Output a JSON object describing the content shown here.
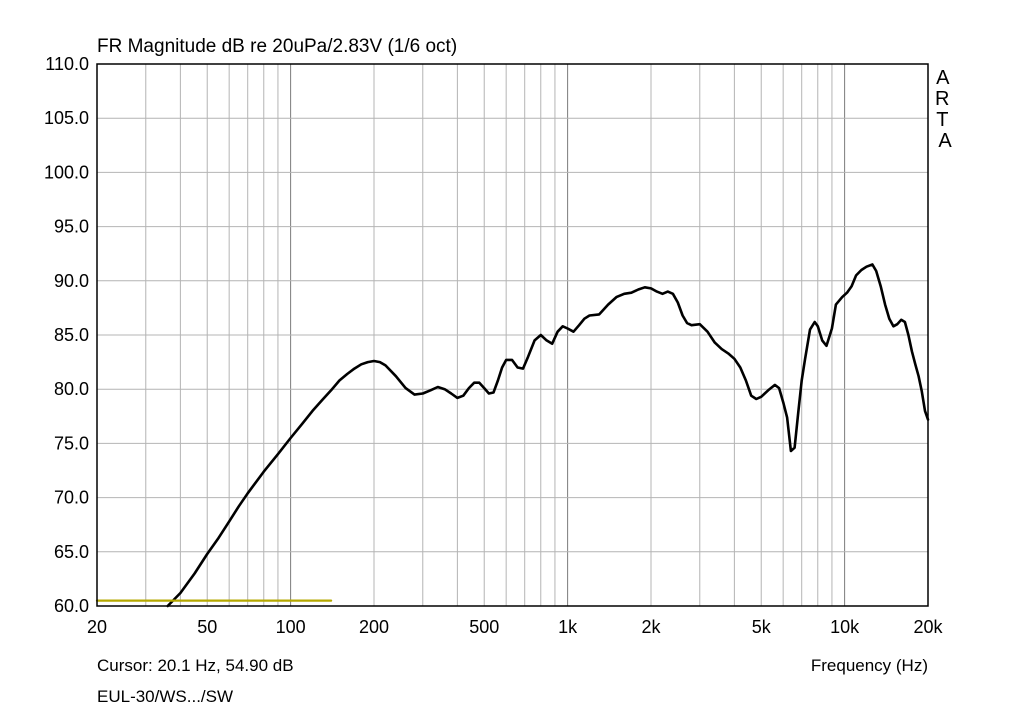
{
  "chart_data": {
    "type": "line",
    "title": "FR Magnitude dB re 20uPa/2.83V (1/6 oct)",
    "xlabel": "Frequency (Hz)",
    "ylabel": "",
    "x_scale": "log",
    "xlim": [
      20,
      20000
    ],
    "ylim": [
      60,
      110
    ],
    "grid": true,
    "y_ticks": [
      "110.0",
      "105.0",
      "100.0",
      "95.0",
      "90.0",
      "85.0",
      "80.0",
      "75.0",
      "70.0",
      "65.0",
      "60.0"
    ],
    "x_ticks": [
      {
        "value": 20,
        "label": "20"
      },
      {
        "value": 50,
        "label": "50"
      },
      {
        "value": 100,
        "label": "100"
      },
      {
        "value": 200,
        "label": "200"
      },
      {
        "value": 500,
        "label": "500"
      },
      {
        "value": 1000,
        "label": "1k"
      },
      {
        "value": 2000,
        "label": "2k"
      },
      {
        "value": 5000,
        "label": "5k"
      },
      {
        "value": 10000,
        "label": "10k"
      },
      {
        "value": 20000,
        "label": "20k"
      }
    ],
    "watermark": "ARTA",
    "cursor_text": "Cursor: 20.1 Hz, 54.90 dB",
    "measurement_name": "EUL-30/WS.../SW",
    "series": [
      {
        "color": "#000000",
        "points": [
          [
            36,
            60.0
          ],
          [
            40,
            61.2
          ],
          [
            45,
            63.0
          ],
          [
            50,
            64.8
          ],
          [
            55,
            66.3
          ],
          [
            60,
            67.8
          ],
          [
            65,
            69.2
          ],
          [
            70,
            70.4
          ],
          [
            80,
            72.4
          ],
          [
            90,
            74.0
          ],
          [
            100,
            75.5
          ],
          [
            110,
            76.8
          ],
          [
            120,
            78.0
          ],
          [
            130,
            79.0
          ],
          [
            140,
            79.9
          ],
          [
            150,
            80.8
          ],
          [
            160,
            81.4
          ],
          [
            170,
            81.9
          ],
          [
            180,
            82.3
          ],
          [
            190,
            82.5
          ],
          [
            200,
            82.6
          ],
          [
            210,
            82.5
          ],
          [
            220,
            82.2
          ],
          [
            240,
            81.2
          ],
          [
            260,
            80.1
          ],
          [
            280,
            79.5
          ],
          [
            300,
            79.6
          ],
          [
            320,
            79.9
          ],
          [
            340,
            80.2
          ],
          [
            360,
            80.0
          ],
          [
            380,
            79.6
          ],
          [
            400,
            79.2
          ],
          [
            420,
            79.4
          ],
          [
            440,
            80.1
          ],
          [
            460,
            80.6
          ],
          [
            480,
            80.6
          ],
          [
            500,
            80.1
          ],
          [
            520,
            79.6
          ],
          [
            540,
            79.7
          ],
          [
            560,
            80.8
          ],
          [
            580,
            82.0
          ],
          [
            600,
            82.7
          ],
          [
            630,
            82.7
          ],
          [
            660,
            82.0
          ],
          [
            690,
            81.9
          ],
          [
            720,
            83.0
          ],
          [
            760,
            84.5
          ],
          [
            800,
            85.0
          ],
          [
            840,
            84.5
          ],
          [
            880,
            84.2
          ],
          [
            920,
            85.3
          ],
          [
            960,
            85.8
          ],
          [
            1000,
            85.6
          ],
          [
            1050,
            85.3
          ],
          [
            1100,
            85.9
          ],
          [
            1150,
            86.5
          ],
          [
            1200,
            86.8
          ],
          [
            1300,
            86.9
          ],
          [
            1400,
            87.8
          ],
          [
            1500,
            88.5
          ],
          [
            1600,
            88.8
          ],
          [
            1700,
            88.9
          ],
          [
            1800,
            89.2
          ],
          [
            1900,
            89.4
          ],
          [
            2000,
            89.3
          ],
          [
            2100,
            89.0
          ],
          [
            2200,
            88.8
          ],
          [
            2300,
            89.0
          ],
          [
            2400,
            88.8
          ],
          [
            2500,
            88.0
          ],
          [
            2600,
            86.8
          ],
          [
            2700,
            86.1
          ],
          [
            2800,
            85.9
          ],
          [
            3000,
            86.0
          ],
          [
            3200,
            85.3
          ],
          [
            3400,
            84.3
          ],
          [
            3600,
            83.7
          ],
          [
            3800,
            83.3
          ],
          [
            4000,
            82.8
          ],
          [
            4200,
            82.0
          ],
          [
            4400,
            80.8
          ],
          [
            4600,
            79.4
          ],
          [
            4800,
            79.1
          ],
          [
            5000,
            79.3
          ],
          [
            5300,
            79.9
          ],
          [
            5600,
            80.4
          ],
          [
            5800,
            80.1
          ],
          [
            6000,
            78.8
          ],
          [
            6200,
            77.4
          ],
          [
            6400,
            74.3
          ],
          [
            6600,
            74.6
          ],
          [
            6800,
            77.8
          ],
          [
            7000,
            80.8
          ],
          [
            7200,
            82.8
          ],
          [
            7500,
            85.5
          ],
          [
            7800,
            86.2
          ],
          [
            8000,
            85.8
          ],
          [
            8300,
            84.5
          ],
          [
            8600,
            84.0
          ],
          [
            9000,
            85.6
          ],
          [
            9300,
            87.8
          ],
          [
            9800,
            88.5
          ],
          [
            10200,
            88.9
          ],
          [
            10600,
            89.5
          ],
          [
            11000,
            90.5
          ],
          [
            11500,
            91.0
          ],
          [
            12000,
            91.3
          ],
          [
            12600,
            91.5
          ],
          [
            13000,
            90.9
          ],
          [
            13500,
            89.5
          ],
          [
            14000,
            87.8
          ],
          [
            14500,
            86.5
          ],
          [
            15000,
            85.8
          ],
          [
            15500,
            86.0
          ],
          [
            16000,
            86.4
          ],
          [
            16500,
            86.2
          ],
          [
            17000,
            85.0
          ],
          [
            17500,
            83.5
          ],
          [
            18000,
            82.3
          ],
          [
            18500,
            81.2
          ],
          [
            19000,
            79.8
          ],
          [
            19500,
            78.0
          ],
          [
            20000,
            77.2
          ]
        ]
      },
      {
        "color": "#b5a800",
        "points": [
          [
            20,
            60.5
          ],
          [
            140,
            60.5
          ]
        ]
      }
    ]
  }
}
